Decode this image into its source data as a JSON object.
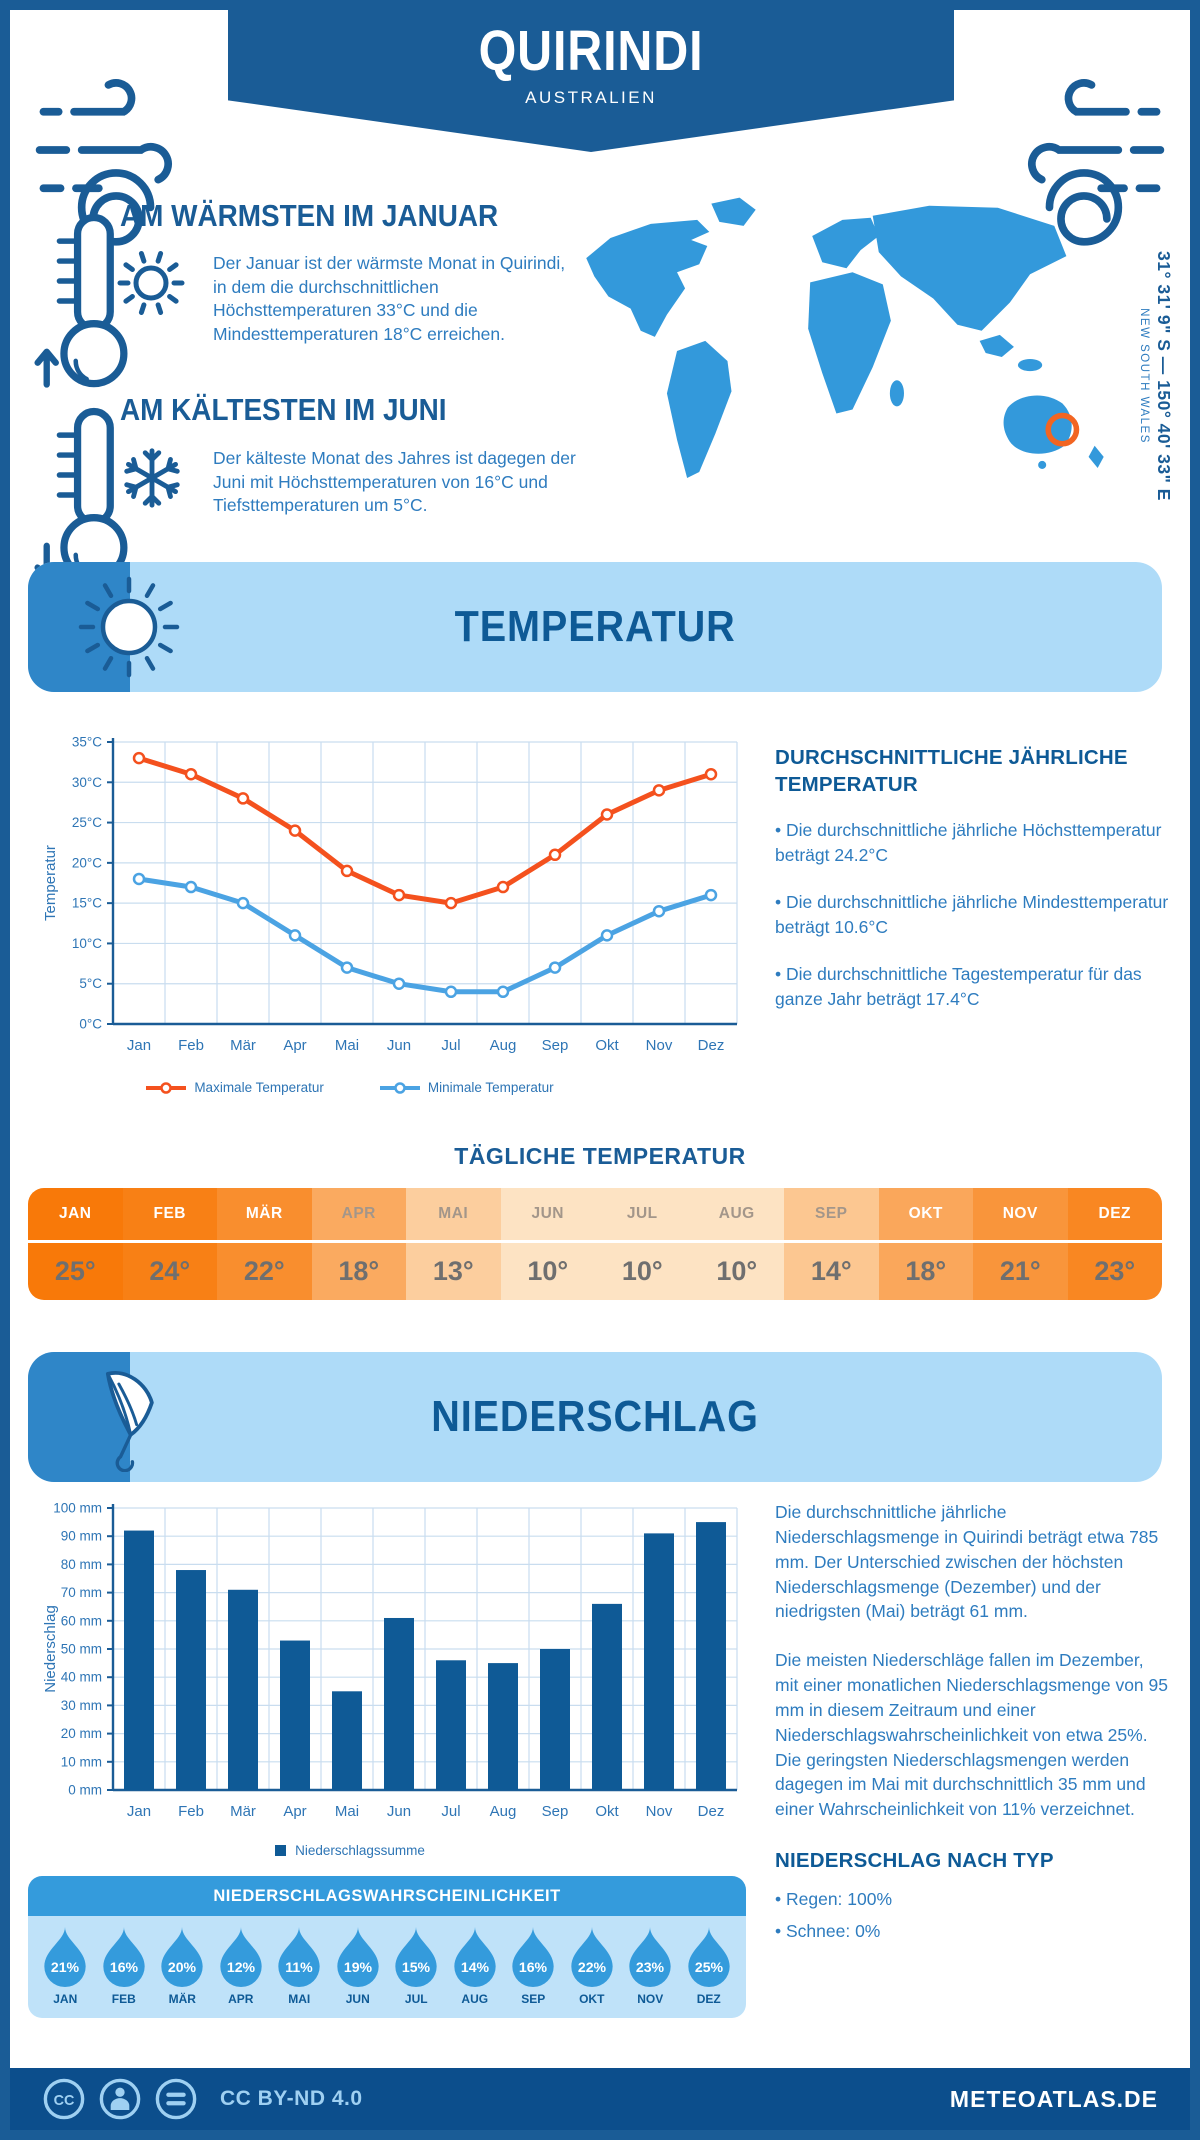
{
  "header": {
    "title": "QUIRINDI",
    "subtitle": "AUSTRALIEN"
  },
  "warmest": {
    "title": "AM WÄRMSTEN IM JANUAR",
    "text": "Der Januar ist der wärmste Monat in Quirindi, in dem die durchschnittlichen Höchsttemperaturen 33°C und die Mindesttemperaturen 18°C erreichen."
  },
  "coldest": {
    "title": "AM KÄLTESTEN IM JUNI",
    "text": "Der kälteste Monat des Jahres ist dagegen der Juni mit Höchsttemperaturen von 16°C und Tiefsttemperaturen um 5°C."
  },
  "map": {
    "coordinates": "31° 31' 9\" S — 150° 40' 33\" E",
    "region": "NEW SOUTH WALES",
    "land_color": "#3399DB",
    "marker_color": "#F26522"
  },
  "sections": {
    "temperature_title": "TEMPERATUR",
    "precipitation_title": "NIEDERSCHLAG"
  },
  "chart_data": [
    {
      "type": "line",
      "categories": [
        "Jan",
        "Feb",
        "Mär",
        "Apr",
        "Mai",
        "Jun",
        "Jul",
        "Aug",
        "Sep",
        "Okt",
        "Nov",
        "Dez"
      ],
      "series": [
        {
          "name": "Maximale Temperatur",
          "color": "#F4511E",
          "values": [
            33,
            31,
            28,
            24,
            19,
            16,
            15,
            17,
            21,
            26,
            29,
            31
          ]
        },
        {
          "name": "Minimale Temperatur",
          "color": "#4BA3E3",
          "values": [
            18,
            17,
            15,
            11,
            7,
            5,
            4,
            4,
            7,
            11,
            14,
            16
          ]
        }
      ],
      "ylabel": "Temperatur",
      "ylim": [
        0,
        35
      ],
      "ytick_step": 5,
      "ytick_suffix": "°C",
      "grid": true,
      "legend_position": "bottom"
    },
    {
      "type": "bar",
      "categories": [
        "Jan",
        "Feb",
        "Mär",
        "Apr",
        "Mai",
        "Jun",
        "Jul",
        "Aug",
        "Sep",
        "Okt",
        "Nov",
        "Dez"
      ],
      "values": [
        92,
        78,
        71,
        53,
        35,
        61,
        46,
        45,
        50,
        66,
        91,
        95
      ],
      "series_name": "Niederschlagssumme",
      "ylabel": "Niederschlag",
      "ylim": [
        0,
        100
      ],
      "ytick_step": 10,
      "ytick_suffix": " mm",
      "bar_color": "#0F5A96",
      "grid": true,
      "legend_position": "bottom"
    }
  ],
  "annual_temperature": {
    "heading": "DURCHSCHNITTLICHE JÄHRLICHE TEMPERATUR",
    "bullets": [
      "• Die durchschnittliche jährliche Höchsttemperatur beträgt 24.2°C",
      "• Die durchschnittliche jährliche Mindesttemperatur beträgt 10.6°C",
      "• Die durchschnittliche Tagestemperatur für das ganze Jahr beträgt 17.4°C"
    ]
  },
  "daily_temperature": {
    "title": "TÄGLICHE TEMPERATUR",
    "months": [
      "JAN",
      "FEB",
      "MÄR",
      "APR",
      "MAI",
      "JUN",
      "JUL",
      "AUG",
      "SEP",
      "OKT",
      "NOV",
      "DEZ"
    ],
    "values": [
      "25°",
      "24°",
      "22°",
      "18°",
      "13°",
      "10°",
      "10°",
      "10°",
      "14°",
      "18°",
      "21°",
      "23°"
    ],
    "cell_colors": [
      "#F87909",
      "#F88015",
      "#F98E2E",
      "#FAAA60",
      "#FCCE9E",
      "#FDE3C3",
      "#FDE3C3",
      "#FDE3C3",
      "#FCC791",
      "#FAA75B",
      "#F9953B",
      "#F98722"
    ],
    "month_text_colors": [
      "#FFFFFF",
      "#FFFFFF",
      "#FFFFFF",
      "#A3968A",
      "#A3968A",
      "#A3968A",
      "#A3968A",
      "#A3968A",
      "#A3968A",
      "#FFFFFF",
      "#FFFFFF",
      "#FFFFFF"
    ],
    "value_text_color": "#6F6F6F"
  },
  "precipitation_text": {
    "paragraphs": [
      "Die durchschnittliche jährliche Niederschlagsmenge in Quirindi beträgt etwa 785 mm. Der Unterschied zwischen der höchsten Niederschlagsmenge (Dezember) und der niedrigsten (Mai) beträgt 61 mm.",
      "Die meisten Niederschläge fallen im Dezember, mit einer monatlichen Niederschlagsmenge von 95 mm in diesem Zeitraum und einer Niederschlagswahrscheinlichkeit von etwa 25%. Die geringsten Niederschlagsmengen werden dagegen im Mai mit durchschnittlich 35 mm und einer Wahrscheinlichkeit von 11% verzeichnet."
    ],
    "type_heading": "NIEDERSCHLAG NACH TYP",
    "bullets": [
      "• Regen: 100%",
      "• Schnee: 0%"
    ]
  },
  "precipitation_probability": {
    "title": "NIEDERSCHLAGSWAHRSCHEINLICHKEIT",
    "months": [
      "JAN",
      "FEB",
      "MÄR",
      "APR",
      "MAI",
      "JUN",
      "JUL",
      "AUG",
      "SEP",
      "OKT",
      "NOV",
      "DEZ"
    ],
    "values": [
      "21%",
      "16%",
      "20%",
      "12%",
      "11%",
      "19%",
      "15%",
      "14%",
      "16%",
      "22%",
      "23%",
      "25%"
    ]
  },
  "footer": {
    "cc_glyph": "CC",
    "license": "CC BY-ND 4.0",
    "site": "METEOATLAS.DE"
  },
  "icons": {
    "wind": "wind-gust-swirl",
    "warm": "thermometer-with-up-arrow-and-sun",
    "cold": "thermometer-with-down-arrow-and-snowflake",
    "temperature_banner": "sun",
    "precipitation_banner": "folded-umbrella",
    "probability": "raindrop",
    "footer": [
      "cc-circle",
      "attribution-person-circle",
      "no-derivatives-equals-circle"
    ]
  },
  "colors": {
    "primary": "#1A5C96",
    "body_text": "#2E7CBF",
    "band": "#AEDBF8",
    "band_tab": "#2F86C8",
    "chart_label": "#2E75B5",
    "grid": "#C9DDEF",
    "bar": "#0F5A96",
    "drop": "#349BDC",
    "footer_bg": "#0C4E8C",
    "max_line": "#F4511E",
    "min_line": "#4BA3E3"
  }
}
